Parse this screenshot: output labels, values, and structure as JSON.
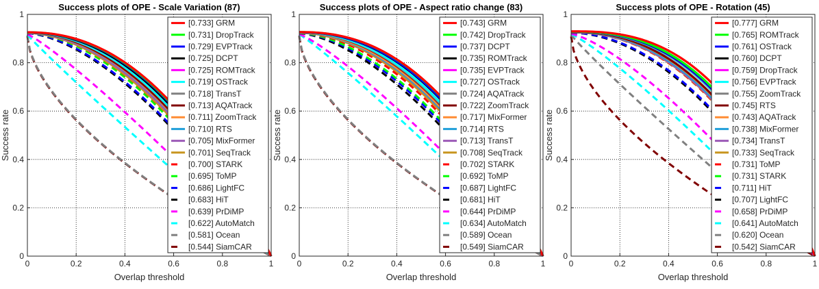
{
  "chart_data": [
    {
      "type": "line",
      "title": "Success plots of OPE - Scale Variation (87)",
      "xlabel": "Overlap threshold",
      "ylabel": "Success rate",
      "xlim": [
        0,
        1
      ],
      "ylim": [
        0,
        1
      ],
      "xticks": [
        "0",
        "0.2",
        "0.4",
        "0.6",
        "0.8",
        "1"
      ],
      "yticks": [
        "0",
        "0.2",
        "0.4",
        "0.6",
        "0.8",
        "1"
      ],
      "grid": true,
      "legend_position": "top-right",
      "series": [
        {
          "label": "[0.733] GRM",
          "score": 0.733,
          "color": "#ff0000",
          "dashed": false
        },
        {
          "label": "[0.731] DropTrack",
          "score": 0.731,
          "color": "#00ff00",
          "dashed": false
        },
        {
          "label": "[0.729] EVPTrack",
          "score": 0.729,
          "color": "#0000ff",
          "dashed": false
        },
        {
          "label": "[0.725] DCPT",
          "score": 0.725,
          "color": "#000000",
          "dashed": false
        },
        {
          "label": "[0.725] ROMTrack",
          "score": 0.725,
          "color": "#ff00ff",
          "dashed": false
        },
        {
          "label": "[0.719] OSTrack",
          "score": 0.719,
          "color": "#00ffff",
          "dashed": false
        },
        {
          "label": "[0.718] TransT",
          "score": 0.718,
          "color": "#808080",
          "dashed": false
        },
        {
          "label": "[0.713] AQATrack",
          "score": 0.713,
          "color": "#800000",
          "dashed": false
        },
        {
          "label": "[0.711] ZoomTrack",
          "score": 0.711,
          "color": "#ff8c33",
          "dashed": false
        },
        {
          "label": "[0.710] RTS",
          "score": 0.71,
          "color": "#1f9ed9",
          "dashed": false
        },
        {
          "label": "[0.705] MixFormer",
          "score": 0.705,
          "color": "#9b59b6",
          "dashed": false
        },
        {
          "label": "[0.701] SeqTrack",
          "score": 0.701,
          "color": "#c8951f",
          "dashed": false
        },
        {
          "label": "[0.700] STARK",
          "score": 0.7,
          "color": "#ff0000",
          "dashed": true
        },
        {
          "label": "[0.695] ToMP",
          "score": 0.695,
          "color": "#00ff00",
          "dashed": true
        },
        {
          "label": "[0.686] LightFC",
          "score": 0.686,
          "color": "#0000ff",
          "dashed": true
        },
        {
          "label": "[0.683] HiT",
          "score": 0.683,
          "color": "#000000",
          "dashed": true
        },
        {
          "label": "[0.639] PrDiMP",
          "score": 0.639,
          "color": "#ff00ff",
          "dashed": true
        },
        {
          "label": "[0.622] AutoMatch",
          "score": 0.622,
          "color": "#00ffff",
          "dashed": true
        },
        {
          "label": "[0.581] Ocean",
          "score": 0.581,
          "color": "#808080",
          "dashed": true
        },
        {
          "label": "[0.544] SiamCAR",
          "score": 0.544,
          "color": "#800000",
          "dashed": true
        }
      ]
    },
    {
      "type": "line",
      "title": "Success plots of OPE - Aspect ratio change (83)",
      "xlabel": "Overlap threshold",
      "ylabel": "Success rate",
      "xlim": [
        0,
        1
      ],
      "ylim": [
        0,
        1
      ],
      "xticks": [
        "0",
        "0.2",
        "0.4",
        "0.6",
        "0.8",
        "1"
      ],
      "yticks": [
        "0",
        "0.2",
        "0.4",
        "0.6",
        "0.8",
        "1"
      ],
      "grid": true,
      "legend_position": "top-right",
      "series": [
        {
          "label": "[0.743] GRM",
          "score": 0.743,
          "color": "#ff0000",
          "dashed": false
        },
        {
          "label": "[0.742] DropTrack",
          "score": 0.742,
          "color": "#00ff00",
          "dashed": false
        },
        {
          "label": "[0.737] DCPT",
          "score": 0.737,
          "color": "#0000ff",
          "dashed": false
        },
        {
          "label": "[0.735] ROMTrack",
          "score": 0.735,
          "color": "#000000",
          "dashed": false
        },
        {
          "label": "[0.735] EVPTrack",
          "score": 0.735,
          "color": "#ff00ff",
          "dashed": false
        },
        {
          "label": "[0.727] OSTrack",
          "score": 0.727,
          "color": "#00ffff",
          "dashed": false
        },
        {
          "label": "[0.724] AQATrack",
          "score": 0.724,
          "color": "#808080",
          "dashed": false
        },
        {
          "label": "[0.722] ZoomTrack",
          "score": 0.722,
          "color": "#800000",
          "dashed": false
        },
        {
          "label": "[0.717] MixFormer",
          "score": 0.717,
          "color": "#ff8c33",
          "dashed": false
        },
        {
          "label": "[0.714] RTS",
          "score": 0.714,
          "color": "#1f9ed9",
          "dashed": false
        },
        {
          "label": "[0.713] TransT",
          "score": 0.713,
          "color": "#9b59b6",
          "dashed": false
        },
        {
          "label": "[0.708] SeqTrack",
          "score": 0.708,
          "color": "#c8951f",
          "dashed": false
        },
        {
          "label": "[0.702] STARK",
          "score": 0.702,
          "color": "#ff0000",
          "dashed": true
        },
        {
          "label": "[0.692] ToMP",
          "score": 0.692,
          "color": "#00ff00",
          "dashed": true
        },
        {
          "label": "[0.687] LightFC",
          "score": 0.687,
          "color": "#0000ff",
          "dashed": true
        },
        {
          "label": "[0.681] HiT",
          "score": 0.681,
          "color": "#000000",
          "dashed": true
        },
        {
          "label": "[0.644] PrDiMP",
          "score": 0.644,
          "color": "#ff00ff",
          "dashed": true
        },
        {
          "label": "[0.634] AutoMatch",
          "score": 0.634,
          "color": "#00ffff",
          "dashed": true
        },
        {
          "label": "[0.589] Ocean",
          "score": 0.589,
          "color": "#808080",
          "dashed": true
        },
        {
          "label": "[0.549] SiamCAR",
          "score": 0.549,
          "color": "#800000",
          "dashed": true
        }
      ]
    },
    {
      "type": "line",
      "title": "Success plots of OPE - Rotation (45)",
      "xlabel": "Overlap threshold",
      "ylabel": "Success rate",
      "xlim": [
        0,
        1
      ],
      "ylim": [
        0,
        1
      ],
      "xticks": [
        "0",
        "0.2",
        "0.4",
        "0.6",
        "0.8",
        "1"
      ],
      "yticks": [
        "0",
        "0.2",
        "0.4",
        "0.6",
        "0.8",
        "1"
      ],
      "grid": true,
      "legend_position": "top-right",
      "series": [
        {
          "label": "[0.777] GRM",
          "score": 0.777,
          "color": "#ff0000",
          "dashed": false
        },
        {
          "label": "[0.765] ROMTrack",
          "score": 0.765,
          "color": "#00ff00",
          "dashed": false
        },
        {
          "label": "[0.761] OSTrack",
          "score": 0.761,
          "color": "#0000ff",
          "dashed": false
        },
        {
          "label": "[0.760] DCPT",
          "score": 0.76,
          "color": "#000000",
          "dashed": false
        },
        {
          "label": "[0.759] DropTrack",
          "score": 0.759,
          "color": "#ff00ff",
          "dashed": false
        },
        {
          "label": "[0.756] EVPTrack",
          "score": 0.756,
          "color": "#00ffff",
          "dashed": false
        },
        {
          "label": "[0.755] ZoomTrack",
          "score": 0.755,
          "color": "#808080",
          "dashed": false
        },
        {
          "label": "[0.745] RTS",
          "score": 0.745,
          "color": "#800000",
          "dashed": false
        },
        {
          "label": "[0.743] AQATrack",
          "score": 0.743,
          "color": "#ff8c33",
          "dashed": false
        },
        {
          "label": "[0.738] MixFormer",
          "score": 0.738,
          "color": "#1f9ed9",
          "dashed": false
        },
        {
          "label": "[0.734] TransT",
          "score": 0.734,
          "color": "#9b59b6",
          "dashed": false
        },
        {
          "label": "[0.733] SeqTrack",
          "score": 0.733,
          "color": "#c8951f",
          "dashed": false
        },
        {
          "label": "[0.731] ToMP",
          "score": 0.731,
          "color": "#ff0000",
          "dashed": true
        },
        {
          "label": "[0.731] STARK",
          "score": 0.731,
          "color": "#00ff00",
          "dashed": true
        },
        {
          "label": "[0.711] HiT",
          "score": 0.711,
          "color": "#0000ff",
          "dashed": true
        },
        {
          "label": "[0.707] LightFC",
          "score": 0.707,
          "color": "#000000",
          "dashed": true
        },
        {
          "label": "[0.658] PrDiMP",
          "score": 0.658,
          "color": "#ff00ff",
          "dashed": true
        },
        {
          "label": "[0.641] AutoMatch",
          "score": 0.641,
          "color": "#00ffff",
          "dashed": true
        },
        {
          "label": "[0.620] Ocean",
          "score": 0.62,
          "color": "#808080",
          "dashed": true
        },
        {
          "label": "[0.542] SiamCAR",
          "score": 0.542,
          "color": "#800000",
          "dashed": true
        }
      ]
    }
  ]
}
